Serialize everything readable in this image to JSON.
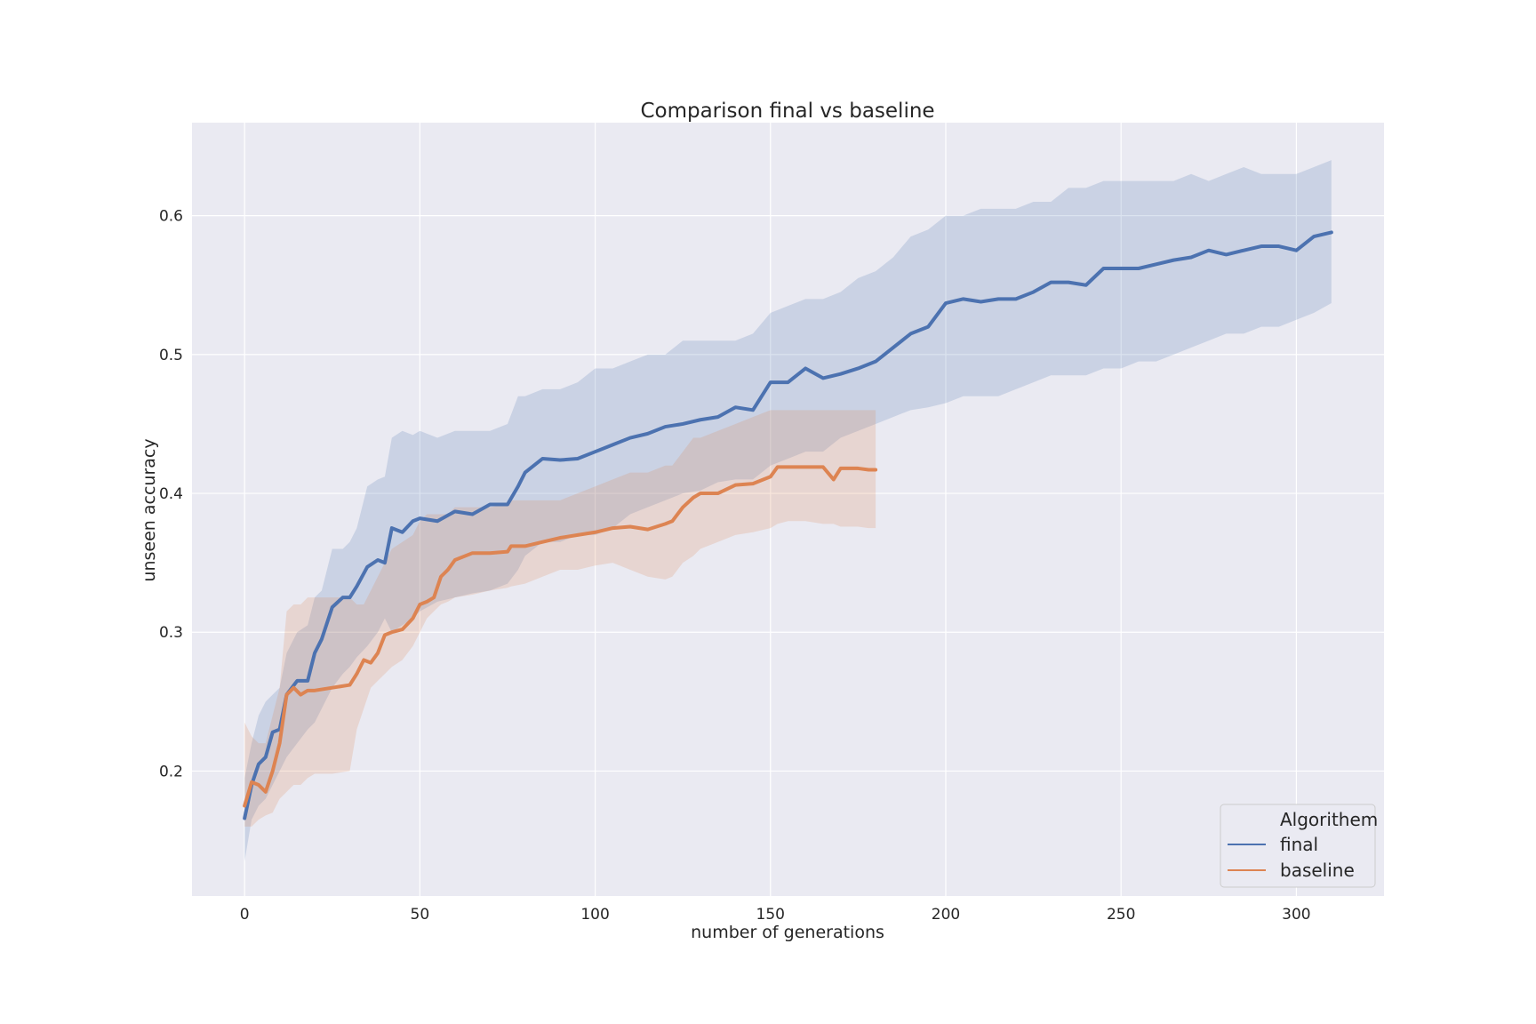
{
  "chart_data": {
    "type": "line",
    "title": "Comparison final vs baseline",
    "xlabel": "number of generations",
    "ylabel": "unseen accuracy",
    "xlim": [
      -15,
      325
    ],
    "ylim": [
      0.11,
      0.667
    ],
    "xticks": [
      0,
      50,
      100,
      150,
      200,
      250,
      300
    ],
    "yticks": [
      0.2,
      0.3,
      0.4,
      0.5,
      0.6
    ],
    "ytick_labels": [
      "0.2",
      "0.3",
      "0.4",
      "0.5",
      "0.6"
    ],
    "grid": true,
    "background": "#eaeaf2",
    "legend": {
      "title": "Algorithem",
      "position": "lower-right",
      "entries": [
        "final",
        "baseline"
      ]
    },
    "series": [
      {
        "name": "final",
        "color": "#4c72b0",
        "x": [
          0,
          2,
          4,
          6,
          8,
          10,
          12,
          15,
          18,
          20,
          22,
          25,
          28,
          30,
          32,
          35,
          38,
          40,
          42,
          45,
          48,
          50,
          55,
          60,
          65,
          70,
          75,
          78,
          80,
          85,
          90,
          95,
          100,
          105,
          110,
          115,
          120,
          125,
          130,
          135,
          140,
          145,
          150,
          155,
          160,
          165,
          170,
          175,
          180,
          185,
          190,
          195,
          200,
          205,
          210,
          215,
          220,
          225,
          230,
          235,
          240,
          245,
          250,
          255,
          260,
          265,
          270,
          275,
          280,
          285,
          290,
          295,
          300,
          305,
          310
        ],
        "y": [
          0.166,
          0.19,
          0.205,
          0.21,
          0.228,
          0.23,
          0.255,
          0.265,
          0.265,
          0.285,
          0.295,
          0.318,
          0.325,
          0.325,
          0.333,
          0.347,
          0.352,
          0.35,
          0.375,
          0.372,
          0.38,
          0.382,
          0.38,
          0.387,
          0.385,
          0.392,
          0.392,
          0.405,
          0.415,
          0.425,
          0.424,
          0.425,
          0.43,
          0.435,
          0.44,
          0.443,
          0.448,
          0.45,
          0.453,
          0.455,
          0.462,
          0.46,
          0.48,
          0.48,
          0.49,
          0.483,
          0.486,
          0.49,
          0.495,
          0.505,
          0.515,
          0.52,
          0.537,
          0.54,
          0.538,
          0.54,
          0.54,
          0.545,
          0.552,
          0.552,
          0.55,
          0.562,
          0.562,
          0.562,
          0.565,
          0.568,
          0.57,
          0.575,
          0.572,
          0.575,
          0.578,
          0.578,
          0.575,
          0.585,
          0.588
        ],
        "ci_low": [
          0.135,
          0.165,
          0.175,
          0.18,
          0.19,
          0.2,
          0.21,
          0.22,
          0.23,
          0.235,
          0.245,
          0.26,
          0.27,
          0.275,
          0.282,
          0.29,
          0.3,
          0.31,
          0.3,
          0.305,
          0.31,
          0.315,
          0.322,
          0.325,
          0.328,
          0.33,
          0.335,
          0.345,
          0.355,
          0.365,
          0.365,
          0.37,
          0.37,
          0.375,
          0.385,
          0.39,
          0.395,
          0.4,
          0.402,
          0.408,
          0.41,
          0.41,
          0.42,
          0.425,
          0.43,
          0.43,
          0.44,
          0.445,
          0.45,
          0.455,
          0.46,
          0.462,
          0.465,
          0.47,
          0.47,
          0.47,
          0.475,
          0.48,
          0.485,
          0.485,
          0.485,
          0.49,
          0.49,
          0.495,
          0.495,
          0.5,
          0.505,
          0.51,
          0.515,
          0.515,
          0.52,
          0.52,
          0.525,
          0.53,
          0.537
        ],
        "ci_high": [
          0.195,
          0.22,
          0.24,
          0.25,
          0.255,
          0.26,
          0.285,
          0.3,
          0.305,
          0.325,
          0.33,
          0.36,
          0.36,
          0.365,
          0.375,
          0.405,
          0.41,
          0.412,
          0.44,
          0.445,
          0.442,
          0.445,
          0.44,
          0.445,
          0.445,
          0.445,
          0.45,
          0.47,
          0.47,
          0.475,
          0.475,
          0.48,
          0.49,
          0.49,
          0.495,
          0.5,
          0.5,
          0.51,
          0.51,
          0.51,
          0.51,
          0.515,
          0.53,
          0.535,
          0.54,
          0.54,
          0.545,
          0.555,
          0.56,
          0.57,
          0.585,
          0.59,
          0.6,
          0.6,
          0.605,
          0.605,
          0.605,
          0.61,
          0.61,
          0.62,
          0.62,
          0.625,
          0.625,
          0.625,
          0.625,
          0.625,
          0.63,
          0.625,
          0.63,
          0.635,
          0.63,
          0.63,
          0.63,
          0.635,
          0.64
        ]
      },
      {
        "name": "baseline",
        "color": "#dd8452",
        "x": [
          0,
          2,
          4,
          6,
          8,
          10,
          12,
          14,
          16,
          18,
          20,
          25,
          30,
          32,
          34,
          36,
          38,
          40,
          42,
          45,
          48,
          50,
          52,
          54,
          56,
          58,
          60,
          65,
          70,
          75,
          76,
          80,
          85,
          90,
          95,
          100,
          105,
          110,
          115,
          120,
          122,
          125,
          128,
          130,
          135,
          140,
          145,
          150,
          152,
          155,
          160,
          165,
          168,
          170,
          175,
          178,
          180
        ],
        "y": [
          0.175,
          0.192,
          0.19,
          0.185,
          0.2,
          0.22,
          0.255,
          0.26,
          0.255,
          0.258,
          0.258,
          0.26,
          0.262,
          0.27,
          0.28,
          0.278,
          0.285,
          0.298,
          0.3,
          0.302,
          0.31,
          0.32,
          0.322,
          0.325,
          0.34,
          0.345,
          0.352,
          0.357,
          0.357,
          0.358,
          0.362,
          0.362,
          0.365,
          0.368,
          0.37,
          0.372,
          0.375,
          0.376,
          0.374,
          0.378,
          0.38,
          0.39,
          0.397,
          0.4,
          0.4,
          0.406,
          0.407,
          0.412,
          0.419,
          0.419,
          0.419,
          0.419,
          0.41,
          0.418,
          0.418,
          0.417,
          0.417
        ],
        "ci_low": [
          0.16,
          0.16,
          0.165,
          0.168,
          0.17,
          0.18,
          0.185,
          0.19,
          0.19,
          0.195,
          0.198,
          0.198,
          0.2,
          0.23,
          0.245,
          0.26,
          0.265,
          0.27,
          0.275,
          0.28,
          0.29,
          0.3,
          0.31,
          0.315,
          0.32,
          0.322,
          0.325,
          0.327,
          0.33,
          0.332,
          0.333,
          0.335,
          0.34,
          0.345,
          0.345,
          0.348,
          0.35,
          0.345,
          0.34,
          0.338,
          0.34,
          0.35,
          0.355,
          0.36,
          0.365,
          0.37,
          0.372,
          0.375,
          0.378,
          0.38,
          0.38,
          0.378,
          0.378,
          0.376,
          0.376,
          0.375,
          0.375
        ],
        "ci_high": [
          0.235,
          0.225,
          0.22,
          0.22,
          0.24,
          0.26,
          0.315,
          0.32,
          0.32,
          0.325,
          0.325,
          0.325,
          0.325,
          0.32,
          0.32,
          0.33,
          0.34,
          0.35,
          0.36,
          0.365,
          0.37,
          0.38,
          0.385,
          0.385,
          0.385,
          0.385,
          0.39,
          0.39,
          0.39,
          0.392,
          0.395,
          0.395,
          0.395,
          0.395,
          0.4,
          0.405,
          0.41,
          0.415,
          0.415,
          0.42,
          0.42,
          0.43,
          0.44,
          0.44,
          0.445,
          0.45,
          0.455,
          0.46,
          0.46,
          0.46,
          0.46,
          0.46,
          0.46,
          0.46,
          0.46,
          0.46,
          0.46
        ]
      }
    ]
  }
}
